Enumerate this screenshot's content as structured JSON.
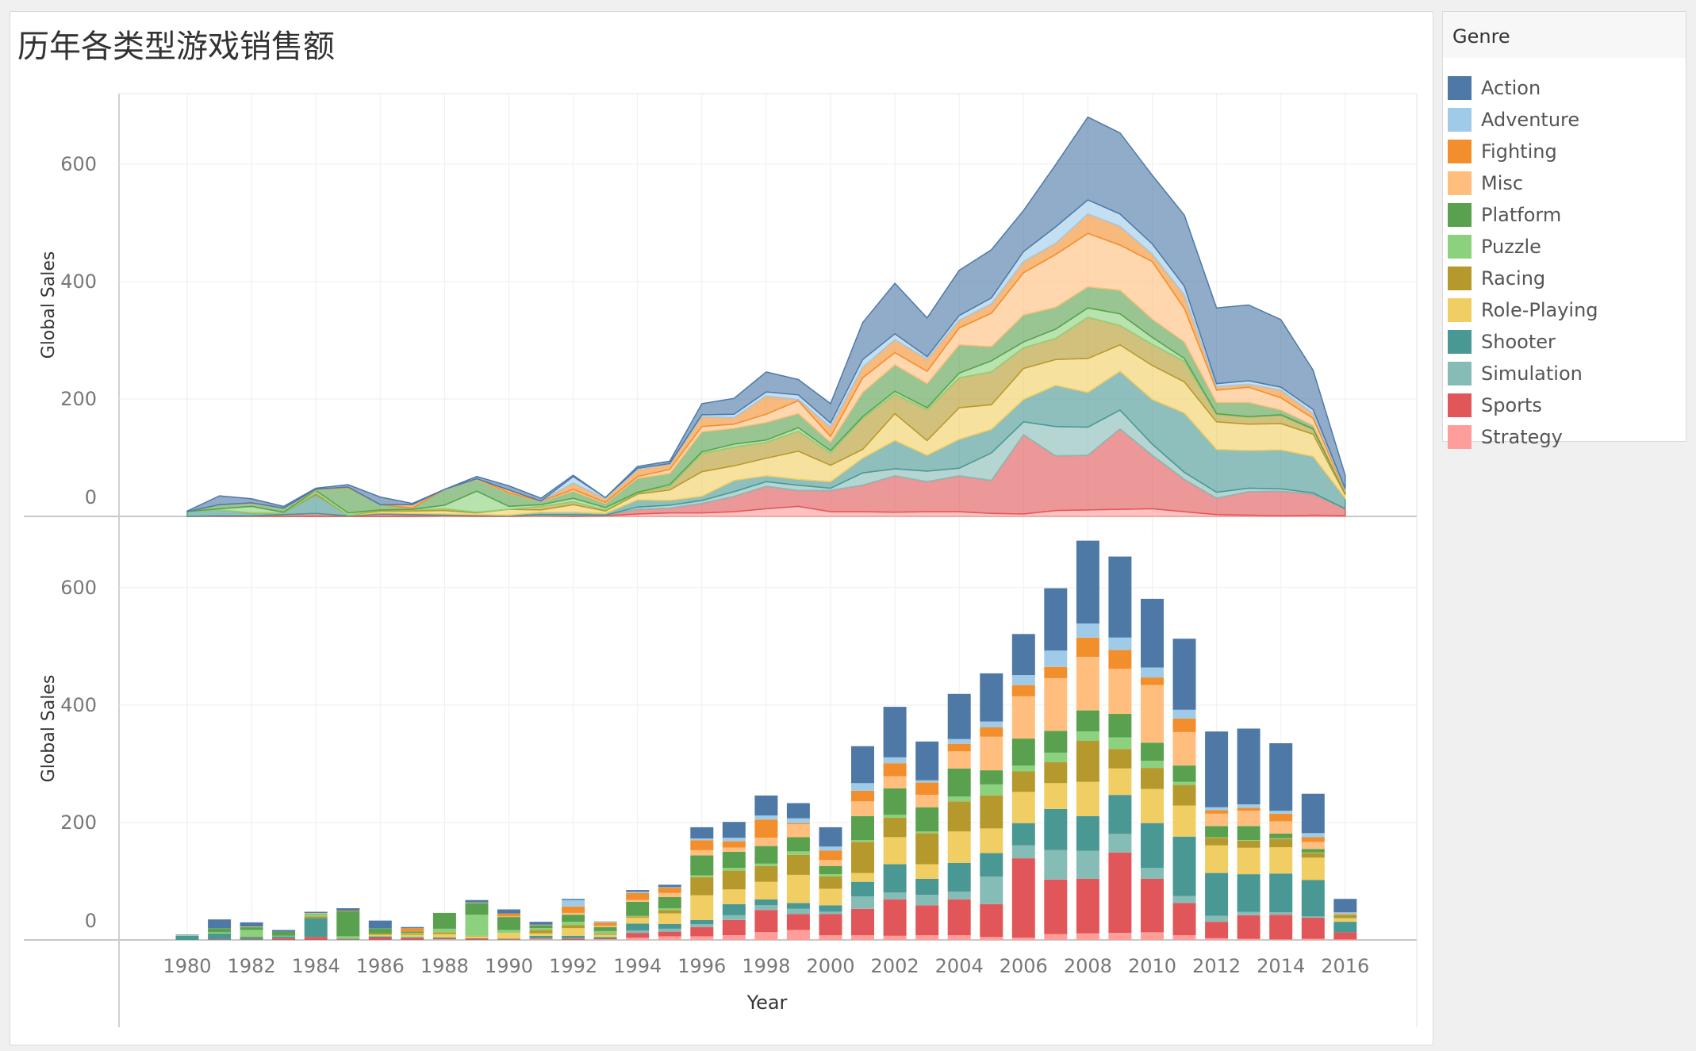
{
  "title": "历年各类型游戏销售额",
  "legend": {
    "title": "Genre",
    "items": [
      {
        "label": "Action",
        "color": "#4e79a7"
      },
      {
        "label": "Adventure",
        "color": "#a0cbe8"
      },
      {
        "label": "Fighting",
        "color": "#f28e2b"
      },
      {
        "label": "Misc",
        "color": "#ffbe7d"
      },
      {
        "label": "Platform",
        "color": "#59a14f"
      },
      {
        "label": "Puzzle",
        "color": "#8cd17d"
      },
      {
        "label": "Racing",
        "color": "#b6992d"
      },
      {
        "label": "Role-Playing",
        "color": "#f1ce63"
      },
      {
        "label": "Shooter",
        "color": "#499894"
      },
      {
        "label": "Simulation",
        "color": "#86bcb6"
      },
      {
        "label": "Sports",
        "color": "#e15759"
      },
      {
        "label": "Strategy",
        "color": "#ff9d9a"
      }
    ]
  },
  "chart_data": [
    {
      "type": "area",
      "stacked": true,
      "title": "",
      "xlabel": "",
      "ylabel": "Global Sales",
      "ylim": [
        0,
        720
      ],
      "yticks": [
        0,
        200,
        400,
        600
      ],
      "x": [
        1980,
        1981,
        1982,
        1983,
        1984,
        1985,
        1986,
        1987,
        1988,
        1989,
        1990,
        1991,
        1992,
        1993,
        1994,
        1995,
        1996,
        1997,
        1998,
        1999,
        2000,
        2001,
        2002,
        2003,
        2004,
        2005,
        2006,
        2007,
        2008,
        2009,
        2010,
        2011,
        2012,
        2013,
        2014,
        2015,
        2016
      ],
      "series": [
        {
          "name": "Strategy",
          "values": [
            0,
            0,
            0,
            0,
            0,
            0,
            0,
            0,
            1,
            0,
            0,
            1,
            0,
            1,
            4,
            6,
            6,
            8,
            13,
            17,
            8,
            8,
            7,
            8,
            8,
            5,
            4,
            10,
            11,
            12,
            13,
            8,
            3,
            2,
            1,
            2,
            1
          ]
        },
        {
          "name": "Sports",
          "values": [
            0,
            1,
            1,
            3,
            5,
            1,
            4,
            3,
            1,
            2,
            1,
            1,
            2,
            1,
            8,
            8,
            16,
            26,
            38,
            27,
            36,
            45,
            62,
            51,
            61,
            56,
            135,
            93,
            93,
            137,
            91,
            55,
            28,
            40,
            42,
            36,
            12
          ]
        },
        {
          "name": "Simulation",
          "values": [
            0,
            0,
            0,
            0,
            0,
            0,
            0,
            0,
            0,
            0,
            0,
            1,
            1,
            0,
            4,
            5,
            5,
            8,
            8,
            9,
            4,
            21,
            12,
            18,
            13,
            47,
            22,
            50,
            48,
            32,
            19,
            12,
            10,
            6,
            4,
            2,
            0
          ]
        },
        {
          "name": "Shooter",
          "values": [
            7,
            10,
            4,
            3,
            32,
            1,
            2,
            2,
            2,
            1,
            1,
            4,
            4,
            3,
            12,
            8,
            7,
            19,
            10,
            10,
            11,
            25,
            48,
            27,
            49,
            40,
            38,
            70,
            59,
            66,
            76,
            101,
            73,
            64,
            66,
            62,
            18
          ]
        },
        {
          "name": "Role-Playing",
          "values": [
            0,
            0,
            0,
            0,
            0,
            0,
            3,
            4,
            6,
            3,
            10,
            4,
            13,
            4,
            10,
            18,
            42,
            25,
            30,
            48,
            28,
            15,
            46,
            25,
            54,
            42,
            53,
            44,
            58,
            45,
            58,
            53,
            47,
            45,
            45,
            38,
            6
          ]
        },
        {
          "name": "Racing",
          "values": [
            0,
            0,
            1,
            0,
            3,
            0,
            2,
            2,
            3,
            1,
            0,
            6,
            5,
            2,
            2,
            6,
            31,
            32,
            27,
            34,
            21,
            53,
            33,
            53,
            51,
            56,
            35,
            36,
            70,
            33,
            36,
            35,
            13,
            12,
            14,
            8,
            3
          ]
        },
        {
          "name": "Puzzle",
          "values": [
            1,
            2,
            11,
            1,
            4,
            4,
            0,
            1,
            6,
            36,
            5,
            3,
            6,
            4,
            1,
            3,
            3,
            5,
            4,
            6,
            4,
            3,
            5,
            3,
            8,
            19,
            10,
            16,
            16,
            20,
            12,
            5,
            1,
            1,
            1,
            1,
            0
          ]
        },
        {
          "name": "Platform",
          "values": [
            0,
            7,
            5,
            7,
            1,
            43,
            9,
            2,
            27,
            20,
            22,
            5,
            12,
            7,
            24,
            19,
            34,
            27,
            30,
            24,
            14,
            41,
            45,
            41,
            48,
            24,
            46,
            37,
            36,
            40,
            31,
            28,
            19,
            24,
            8,
            6,
            2
          ]
        },
        {
          "name": "Misc",
          "values": [
            0,
            0,
            1,
            0,
            1,
            0,
            0,
            0,
            0,
            1,
            1,
            1,
            3,
            2,
            3,
            7,
            9,
            7,
            14,
            22,
            10,
            25,
            21,
            21,
            29,
            57,
            72,
            90,
            91,
            77,
            98,
            57,
            21,
            26,
            21,
            12,
            1
          ]
        },
        {
          "name": "Fighting",
          "values": [
            0,
            0,
            0,
            0,
            0,
            1,
            0,
            6,
            0,
            0,
            5,
            0,
            11,
            6,
            12,
            9,
            17,
            11,
            31,
            2,
            16,
            18,
            22,
            21,
            13,
            16,
            19,
            19,
            33,
            32,
            13,
            23,
            6,
            5,
            13,
            8,
            2
          ]
        },
        {
          "name": "Adventure",
          "values": [
            0,
            0,
            0,
            0,
            0,
            0,
            0,
            0,
            0,
            0,
            0,
            0,
            11,
            2,
            2,
            1,
            3,
            6,
            7,
            8,
            7,
            13,
            10,
            4,
            8,
            10,
            17,
            28,
            24,
            21,
            17,
            15,
            5,
            6,
            5,
            7,
            2
          ]
        },
        {
          "name": "Action",
          "values": [
            1,
            15,
            7,
            3,
            2,
            4,
            13,
            2,
            0,
            4,
            7,
            5,
            2,
            0,
            3,
            4,
            19,
            27,
            34,
            26,
            33,
            63,
            86,
            66,
            77,
            82,
            70,
            106,
            141,
            138,
            117,
            121,
            129,
            129,
            115,
            67,
            23
          ]
        }
      ]
    },
    {
      "type": "bar",
      "stacked": true,
      "title": "",
      "xlabel": "Year",
      "ylabel": "Global Sales",
      "ylim": [
        0,
        720
      ],
      "yticks": [
        0,
        200,
        400,
        600
      ],
      "x": [
        1980,
        1981,
        1982,
        1983,
        1984,
        1985,
        1986,
        1987,
        1988,
        1989,
        1990,
        1991,
        1992,
        1993,
        1994,
        1995,
        1996,
        1997,
        1998,
        1999,
        2000,
        2001,
        2002,
        2003,
        2004,
        2005,
        2006,
        2007,
        2008,
        2009,
        2010,
        2011,
        2012,
        2013,
        2014,
        2015,
        2016
      ],
      "xticks": [
        "1980",
        "1982",
        "1984",
        "1986",
        "1988",
        "1990",
        "1992",
        "1994",
        "1996",
        "1998",
        "2000",
        "2002",
        "2004",
        "2006",
        "2008",
        "2010",
        "2012",
        "2014",
        "2016"
      ],
      "series_ref": "same as area chart"
    }
  ]
}
